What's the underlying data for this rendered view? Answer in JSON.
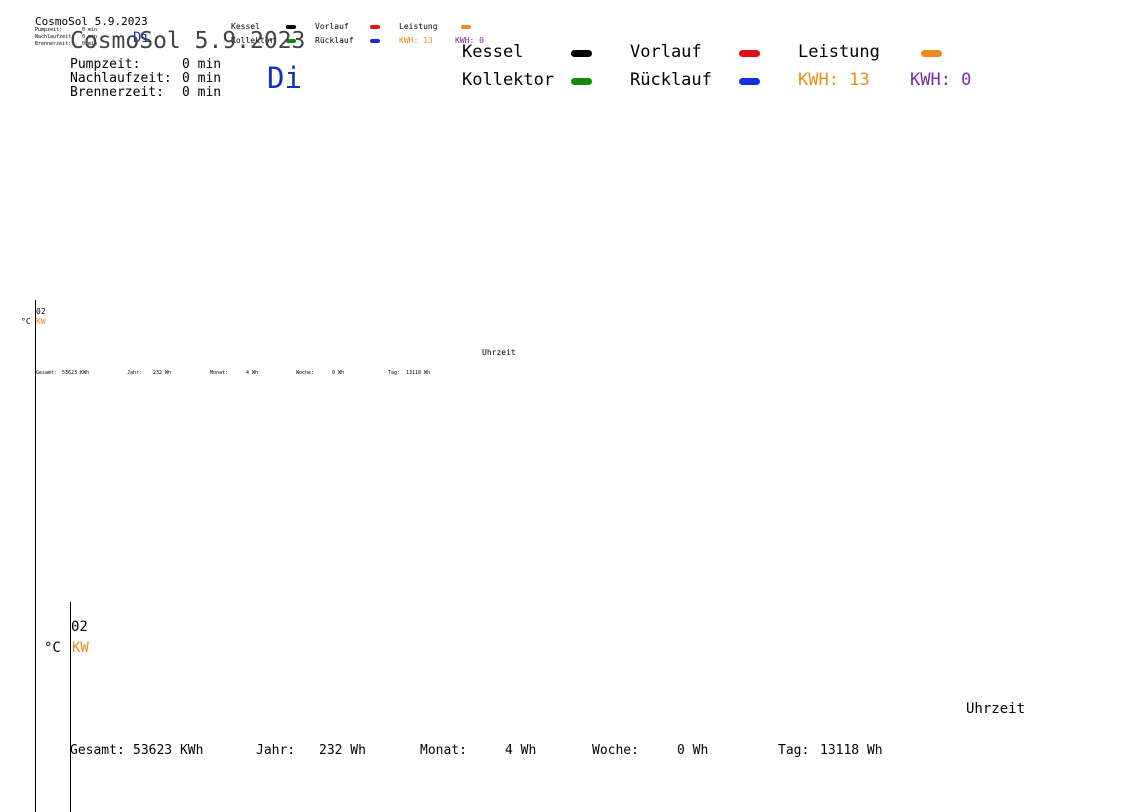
{
  "title": "CosmoSol 5.9.2023",
  "day": "Di",
  "times": [
    {
      "label": "Pumpzeit:",
      "value": "0 min"
    },
    {
      "label": "Nachlaufzeit:",
      "value": "0 min"
    },
    {
      "label": "Brennerzeit:",
      "value": "0 min"
    }
  ],
  "legend": {
    "kessel": "Kessel",
    "kollektor": "Kollektor",
    "vorlauf": "Vorlauf",
    "ruecklauf": "Rücklauf",
    "leistung": "Leistung",
    "kwh1": "KWH: 13",
    "kwh2": "KWH: 0"
  },
  "colors": {
    "kessel": "#000000",
    "kollektor": "#108a10",
    "vorlauf": "#e01010",
    "ruecklauf": "#1030e0",
    "leistung": "#f08a1a",
    "kwh1": "#e88e1c",
    "kwh2": "#7a2a9a",
    "day": "#1030c8"
  },
  "axis": {
    "y_label_top": "02",
    "unit_c": "°C",
    "unit_kw": "KW",
    "x_label": "Uhrzeit"
  },
  "totals": [
    {
      "label": "Gesamt:",
      "value": "53623 KWh"
    },
    {
      "label": "Jahr:",
      "value": "232 Wh"
    },
    {
      "label": "Monat:",
      "value": "4 Wh"
    },
    {
      "label": "Woche:",
      "value": "0 Wh"
    },
    {
      "label": "Tag:",
      "value": "13118 Wh"
    }
  ]
}
